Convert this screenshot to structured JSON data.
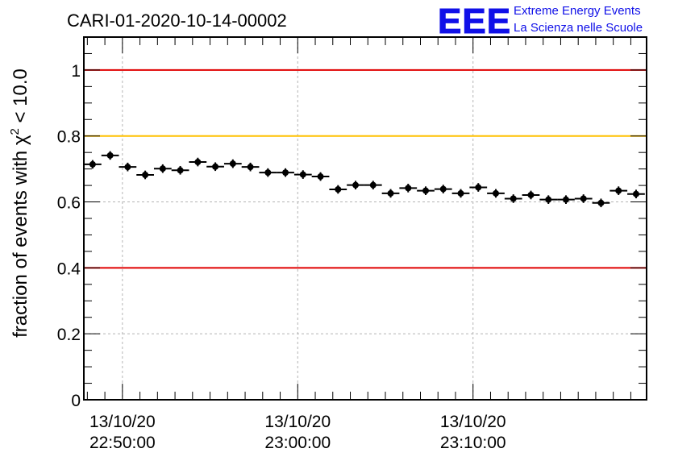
{
  "chart_data": {
    "type": "scatter",
    "title": "CARI-01-2020-10-14-00002",
    "ylabel_prefix": "fraction of events with ",
    "ylabel_symbol": "χ",
    "ylabel_superscript": "2",
    "ylabel_suffix": " < 10.0",
    "xlabel": "",
    "ylim": [
      0,
      1.1
    ],
    "y_ticks": [
      {
        "value": 0,
        "label": "0"
      },
      {
        "value": 0.2,
        "label": "0.2"
      },
      {
        "value": 0.4,
        "label": "0.4"
      },
      {
        "value": 0.6,
        "label": "0.6"
      },
      {
        "value": 0.8,
        "label": "0.8"
      },
      {
        "value": 1.0,
        "label": "1"
      }
    ],
    "xlim_minutes": [
      -22.2,
      9.9
    ],
    "x_ticks": [
      {
        "value": -20,
        "date": "13/10/20",
        "time": "22:50:00"
      },
      {
        "value": -10,
        "date": "13/10/20",
        "time": "23:00:00"
      },
      {
        "value": 0,
        "date": "13/10/20",
        "time": "23:10:00"
      }
    ],
    "x_units": "minutes relative to 13/10/20 23:10:00",
    "grid": true,
    "reference_lines": [
      {
        "y": 1.0,
        "color": "#e00000"
      },
      {
        "y": 0.8,
        "color": "#ffc000"
      },
      {
        "y": 0.4,
        "color": "#e00000"
      }
    ],
    "series": [
      {
        "name": "fraction",
        "color": "#000000",
        "x_halfwidth": 0.5,
        "x": [
          -21.7,
          -20.7,
          -19.7,
          -18.7,
          -17.7,
          -16.7,
          -15.7,
          -14.7,
          -13.7,
          -12.7,
          -11.7,
          -10.7,
          -9.7,
          -8.7,
          -7.7,
          -6.7,
          -5.7,
          -4.7,
          -3.7,
          -2.7,
          -1.7,
          -0.7,
          0.3,
          1.3,
          2.3,
          3.3,
          4.3,
          5.3,
          6.3,
          7.3,
          8.3,
          9.3
        ],
        "values": [
          0.714,
          0.741,
          0.706,
          0.682,
          0.701,
          0.696,
          0.721,
          0.707,
          0.716,
          0.706,
          0.689,
          0.689,
          0.683,
          0.677,
          0.638,
          0.651,
          0.651,
          0.626,
          0.642,
          0.634,
          0.639,
          0.626,
          0.644,
          0.626,
          0.61,
          0.621,
          0.607,
          0.607,
          0.61,
          0.597,
          0.634,
          0.624
        ],
        "errors": [
          0.013,
          0.013,
          0.013,
          0.013,
          0.013,
          0.013,
          0.013,
          0.013,
          0.013,
          0.013,
          0.013,
          0.013,
          0.013,
          0.013,
          0.013,
          0.013,
          0.013,
          0.013,
          0.013,
          0.013,
          0.013,
          0.013,
          0.013,
          0.013,
          0.013,
          0.013,
          0.013,
          0.013,
          0.013,
          0.013,
          0.013,
          0.013
        ]
      }
    ]
  },
  "logo": {
    "mark": "EEE",
    "line1": "Extreme Energy Events",
    "line2": "La Scienza nelle Scuole",
    "color": "#1010e8"
  }
}
